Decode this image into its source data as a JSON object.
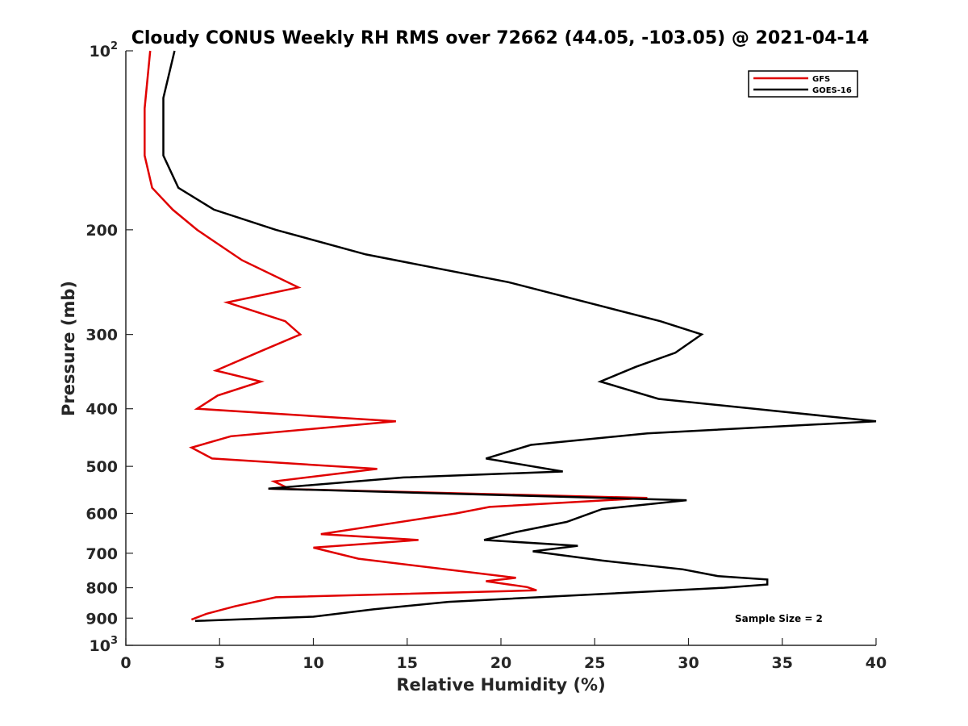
{
  "chart_data": {
    "type": "line",
    "title": "Cloudy CONUS Weekly RH RMS over 72662 (44.05, -103.05) @ 2021-04-14",
    "xlabel": "Relative Humidity (%)",
    "ylabel": "Pressure (mb)",
    "xlim": [
      0,
      40
    ],
    "ylim": [
      100,
      1000
    ],
    "yscale": "log",
    "y_reversed": true,
    "x_ticks": [
      "0",
      "5",
      "10",
      "15",
      "20",
      "25",
      "30",
      "35",
      "40"
    ],
    "y_ticks": [
      {
        "value": 100,
        "label": "10",
        "exp": "2"
      },
      {
        "value": 200,
        "label": "200",
        "exp": ""
      },
      {
        "value": 300,
        "label": "300",
        "exp": ""
      },
      {
        "value": 400,
        "label": "400",
        "exp": ""
      },
      {
        "value": 500,
        "label": "500",
        "exp": ""
      },
      {
        "value": 600,
        "label": "600",
        "exp": ""
      },
      {
        "value": 700,
        "label": "700",
        "exp": ""
      },
      {
        "value": 800,
        "label": "800",
        "exp": ""
      },
      {
        "value": 900,
        "label": "900",
        "exp": ""
      },
      {
        "value": 1000,
        "label": "10",
        "exp": "3"
      }
    ],
    "legend_position": "top-right",
    "annotation": "Sample Size = 2",
    "series": [
      {
        "name": "GFS",
        "color": "#e00000",
        "points": [
          [
            1.3,
            100
          ],
          [
            1.0,
            125
          ],
          [
            1.0,
            150
          ],
          [
            1.4,
            170
          ],
          [
            2.5,
            185
          ],
          [
            3.8,
            200
          ],
          [
            6.2,
            225
          ],
          [
            9.2,
            250
          ],
          [
            5.4,
            265
          ],
          [
            8.5,
            285
          ],
          [
            9.3,
            300
          ],
          [
            7.2,
            320
          ],
          [
            4.8,
            345
          ],
          [
            7.2,
            360
          ],
          [
            4.9,
            380
          ],
          [
            3.8,
            400
          ],
          [
            14.4,
            420
          ],
          [
            5.6,
            445
          ],
          [
            3.5,
            465
          ],
          [
            4.6,
            485
          ],
          [
            13.4,
            505
          ],
          [
            7.9,
            530
          ],
          [
            8.7,
            545
          ],
          [
            7.6,
            545
          ],
          [
            27.8,
            565
          ],
          [
            19.4,
            585
          ],
          [
            17.6,
            600
          ],
          [
            10.4,
            650
          ],
          [
            15.6,
            665
          ],
          [
            10.0,
            685
          ],
          [
            12.4,
            715
          ],
          [
            20.8,
            770
          ],
          [
            19.2,
            780
          ],
          [
            21.4,
            798
          ],
          [
            21.9,
            808
          ],
          [
            8.0,
            830
          ],
          [
            5.8,
            860
          ],
          [
            4.3,
            885
          ],
          [
            3.5,
            905
          ]
        ]
      },
      {
        "name": "GOES-16",
        "color": "#000000",
        "points": [
          [
            2.6,
            100
          ],
          [
            2.0,
            120
          ],
          [
            2.0,
            150
          ],
          [
            2.8,
            170
          ],
          [
            4.7,
            185
          ],
          [
            8.0,
            200
          ],
          [
            12.8,
            220
          ],
          [
            20.4,
            245
          ],
          [
            28.5,
            285
          ],
          [
            30.7,
            300
          ],
          [
            29.3,
            322
          ],
          [
            27.2,
            340
          ],
          [
            25.3,
            360
          ],
          [
            28.4,
            385
          ],
          [
            40.0,
            420
          ],
          [
            27.8,
            440
          ],
          [
            21.6,
            460
          ],
          [
            19.2,
            485
          ],
          [
            23.3,
            510
          ],
          [
            14.8,
            522
          ],
          [
            7.6,
            545
          ],
          [
            29.9,
            570
          ],
          [
            25.4,
            590
          ],
          [
            23.5,
            620
          ],
          [
            20.8,
            645
          ],
          [
            19.1,
            665
          ],
          [
            24.1,
            680
          ],
          [
            21.7,
            695
          ],
          [
            25.4,
            720
          ],
          [
            29.7,
            745
          ],
          [
            31.6,
            765
          ],
          [
            34.2,
            775
          ],
          [
            34.2,
            790
          ],
          [
            31.9,
            800
          ],
          [
            17.2,
            845
          ],
          [
            13.2,
            870
          ],
          [
            10.0,
            895
          ],
          [
            3.7,
            910
          ]
        ]
      }
    ]
  }
}
